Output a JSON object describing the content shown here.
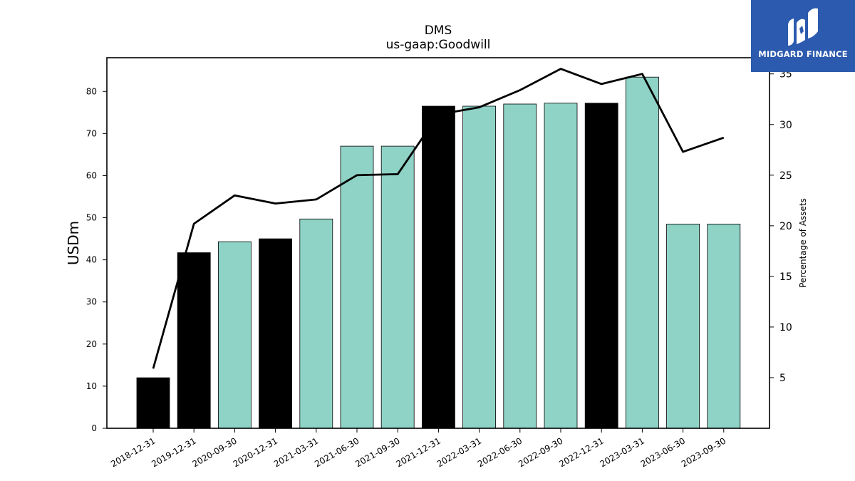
{
  "colors": {
    "bar_fill": "#8fd3c6",
    "bar_highlight": "#000000",
    "line": "#000000",
    "logo_bg": "#2b5aae",
    "logo_text": "#ffffff"
  },
  "logo": {
    "text": "MIDGARD FINANCE",
    "icon": "midgard-logo-mark-icon"
  },
  "chart_data": {
    "type": "bar",
    "title": "DMS",
    "subtitle": "us-gaap:Goodwill",
    "ylabel": "USDm",
    "ylabel_right": "Percentage of Assets",
    "ylim": [
      0,
      88
    ],
    "ylim_right": [
      0,
      36.6
    ],
    "yticks": [
      0,
      10,
      20,
      30,
      40,
      50,
      60,
      70,
      80
    ],
    "yticks_right": [
      5,
      10,
      15,
      20,
      25,
      30,
      35
    ],
    "grid": false,
    "categories": [
      "2018-12-31",
      "2019-12-31",
      "2020-09-30",
      "2020-12-31",
      "2021-03-31",
      "2021-06-30",
      "2021-09-30",
      "2021-12-31",
      "2022-03-31",
      "2022-06-30",
      "2022-09-30",
      "2022-12-31",
      "2023-03-31",
      "2023-06-30",
      "2023-09-30"
    ],
    "series": [
      {
        "kind": "bar",
        "axis": "left",
        "values": [
          12.0,
          41.7,
          44.3,
          45.0,
          49.7,
          67.0,
          67.0,
          76.5,
          76.5,
          77.0,
          77.2,
          77.2,
          83.4,
          48.5,
          48.5
        ],
        "highlight": [
          true,
          true,
          false,
          true,
          false,
          false,
          false,
          true,
          false,
          false,
          false,
          true,
          false,
          false,
          false
        ]
      },
      {
        "kind": "line",
        "axis": "right",
        "values": [
          5.9,
          20.2,
          23.0,
          22.2,
          22.6,
          25.0,
          25.1,
          31.0,
          31.7,
          33.4,
          35.5,
          34.0,
          35.0,
          27.3,
          28.7
        ]
      }
    ]
  }
}
